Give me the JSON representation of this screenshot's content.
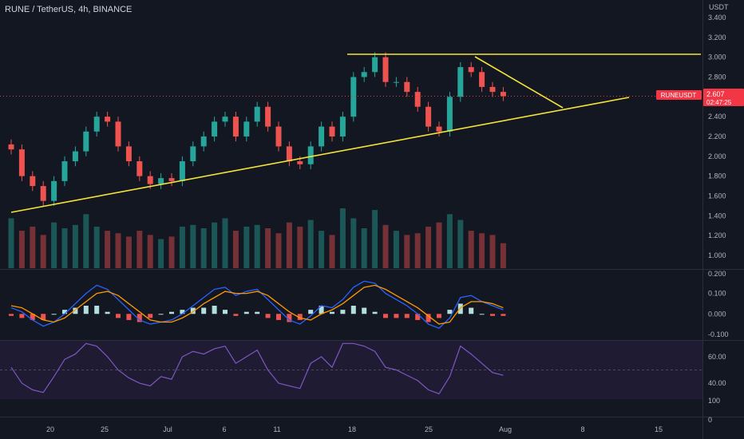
{
  "header": {
    "title": "RUNE / TetherUS, 4h, BINANCE"
  },
  "price_axis": {
    "unit": "USDT",
    "ticks": [
      "3.400",
      "3.200",
      "3.000",
      "2.800",
      "2.600",
      "2.400",
      "2.200",
      "2.000",
      "1.800",
      "1.600",
      "1.400",
      "1.200",
      "1.000"
    ]
  },
  "macd_axis": {
    "ticks": [
      "0.200",
      "0.100",
      "0.000",
      "-0.100"
    ]
  },
  "rsi_axis": {
    "ticks": [
      "60.00",
      "40.00"
    ]
  },
  "volume_axis": {
    "ticks": [
      "100",
      "0"
    ]
  },
  "price_tag": {
    "symbol": "RUNEUSDT",
    "price": "2.607",
    "countdown": "02:47:25",
    "color": "#f23645"
  },
  "x_axis": {
    "labels": [
      "20",
      "25",
      "Jul",
      "6",
      "11",
      "18",
      "25",
      "Aug",
      "8",
      "15"
    ]
  },
  "colors": {
    "background": "#131722",
    "up": "#26a69a",
    "down": "#ef5350",
    "trendline": "#f5e33a",
    "macd": "#2962ff",
    "signal": "#ff9800",
    "rsi": "#7e57c2",
    "rsi_band": "#1e1b33",
    "axis_text": "#b2b5be"
  },
  "chart_data": [
    {
      "type": "candlestick",
      "title": "RUNE / TetherUS, 4h, BINANCE",
      "ylabel": "USDT",
      "ylim": [
        1.0,
        3.4
      ],
      "x": [
        "2022-06-17",
        "2022-06-18",
        "2022-06-19",
        "2022-06-20",
        "2022-06-21",
        "2022-06-22",
        "2022-06-23",
        "2022-06-24",
        "2022-06-25",
        "2022-06-26",
        "2022-06-27",
        "2022-06-28",
        "2022-06-29",
        "2022-06-30",
        "2022-07-01",
        "2022-07-02",
        "2022-07-03",
        "2022-07-04",
        "2022-07-05",
        "2022-07-06",
        "2022-07-07",
        "2022-07-08",
        "2022-07-09",
        "2022-07-10",
        "2022-07-11",
        "2022-07-12",
        "2022-07-13",
        "2022-07-14",
        "2022-07-15",
        "2022-07-16",
        "2022-07-17",
        "2022-07-18",
        "2022-07-19",
        "2022-07-20",
        "2022-07-21",
        "2022-07-22",
        "2022-07-23",
        "2022-07-24",
        "2022-07-25",
        "2022-07-26",
        "2022-07-27",
        "2022-07-28",
        "2022-07-29",
        "2022-07-30",
        "2022-07-31",
        "2022-08-01",
        "2022-08-02"
      ],
      "close": [
        2.07,
        1.8,
        1.7,
        1.55,
        1.75,
        1.95,
        2.05,
        2.25,
        2.4,
        2.35,
        2.1,
        1.95,
        1.8,
        1.72,
        1.78,
        1.75,
        1.95,
        2.1,
        2.2,
        2.35,
        2.4,
        2.2,
        2.35,
        2.5,
        2.3,
        2.1,
        1.95,
        1.92,
        2.1,
        2.3,
        2.2,
        2.4,
        2.8,
        2.85,
        3.0,
        2.75,
        2.75,
        2.65,
        2.5,
        2.3,
        2.25,
        2.6,
        2.9,
        2.85,
        2.7,
        2.65,
        2.607
      ],
      "annotations": {
        "last_price": 2.607,
        "resistance_level": 3.01
      }
    },
    {
      "type": "line",
      "title": "MACD",
      "ylim": [
        -0.12,
        0.2
      ],
      "series": [
        {
          "values": [
            0.03,
            0.01,
            -0.03,
            -0.06,
            -0.04,
            0.0,
            0.05,
            0.1,
            0.14,
            0.12,
            0.07,
            0.02,
            -0.03,
            -0.05,
            -0.04,
            -0.03,
            0.0,
            0.04,
            0.08,
            0.12,
            0.13,
            0.09,
            0.11,
            0.12,
            0.07,
            0.02,
            -0.03,
            -0.05,
            -0.01,
            0.04,
            0.03,
            0.07,
            0.13,
            0.16,
            0.15,
            0.1,
            0.07,
            0.04,
            0.0,
            -0.05,
            -0.07,
            -0.02,
            0.08,
            0.09,
            0.06,
            0.04,
            0.02
          ]
        },
        {
          "values": [
            0.04,
            0.03,
            0.0,
            -0.03,
            -0.04,
            -0.02,
            0.02,
            0.06,
            0.1,
            0.11,
            0.09,
            0.05,
            0.01,
            -0.03,
            -0.04,
            -0.04,
            -0.02,
            0.01,
            0.05,
            0.08,
            0.11,
            0.1,
            0.1,
            0.11,
            0.09,
            0.05,
            0.01,
            -0.02,
            -0.03,
            0.0,
            0.02,
            0.05,
            0.09,
            0.13,
            0.14,
            0.12,
            0.09,
            0.06,
            0.03,
            -0.01,
            -0.05,
            -0.04,
            0.03,
            0.06,
            0.06,
            0.05,
            0.03
          ]
        }
      ]
    },
    {
      "type": "line",
      "title": "RSI",
      "ylim": [
        28,
        72
      ],
      "series": [
        {
          "values": [
            52,
            40,
            35,
            33,
            45,
            58,
            62,
            70,
            68,
            60,
            50,
            44,
            40,
            38,
            45,
            43,
            60,
            64,
            62,
            66,
            68,
            55,
            60,
            65,
            50,
            40,
            38,
            36,
            55,
            60,
            52,
            70,
            70,
            68,
            64,
            52,
            50,
            46,
            42,
            35,
            32,
            45,
            68,
            62,
            55,
            48,
            46
          ]
        }
      ]
    },
    {
      "type": "bar",
      "title": "Volume",
      "values": [
        60,
        45,
        50,
        40,
        55,
        48,
        52,
        65,
        50,
        45,
        42,
        38,
        45,
        40,
        35,
        38,
        50,
        52,
        48,
        55,
        60,
        45,
        50,
        52,
        48,
        42,
        55,
        50,
        58,
        45,
        40,
        72,
        60,
        48,
        70,
        52,
        45,
        40,
        42,
        50,
        55,
        65,
        58,
        45,
        42,
        40,
        30
      ]
    }
  ]
}
